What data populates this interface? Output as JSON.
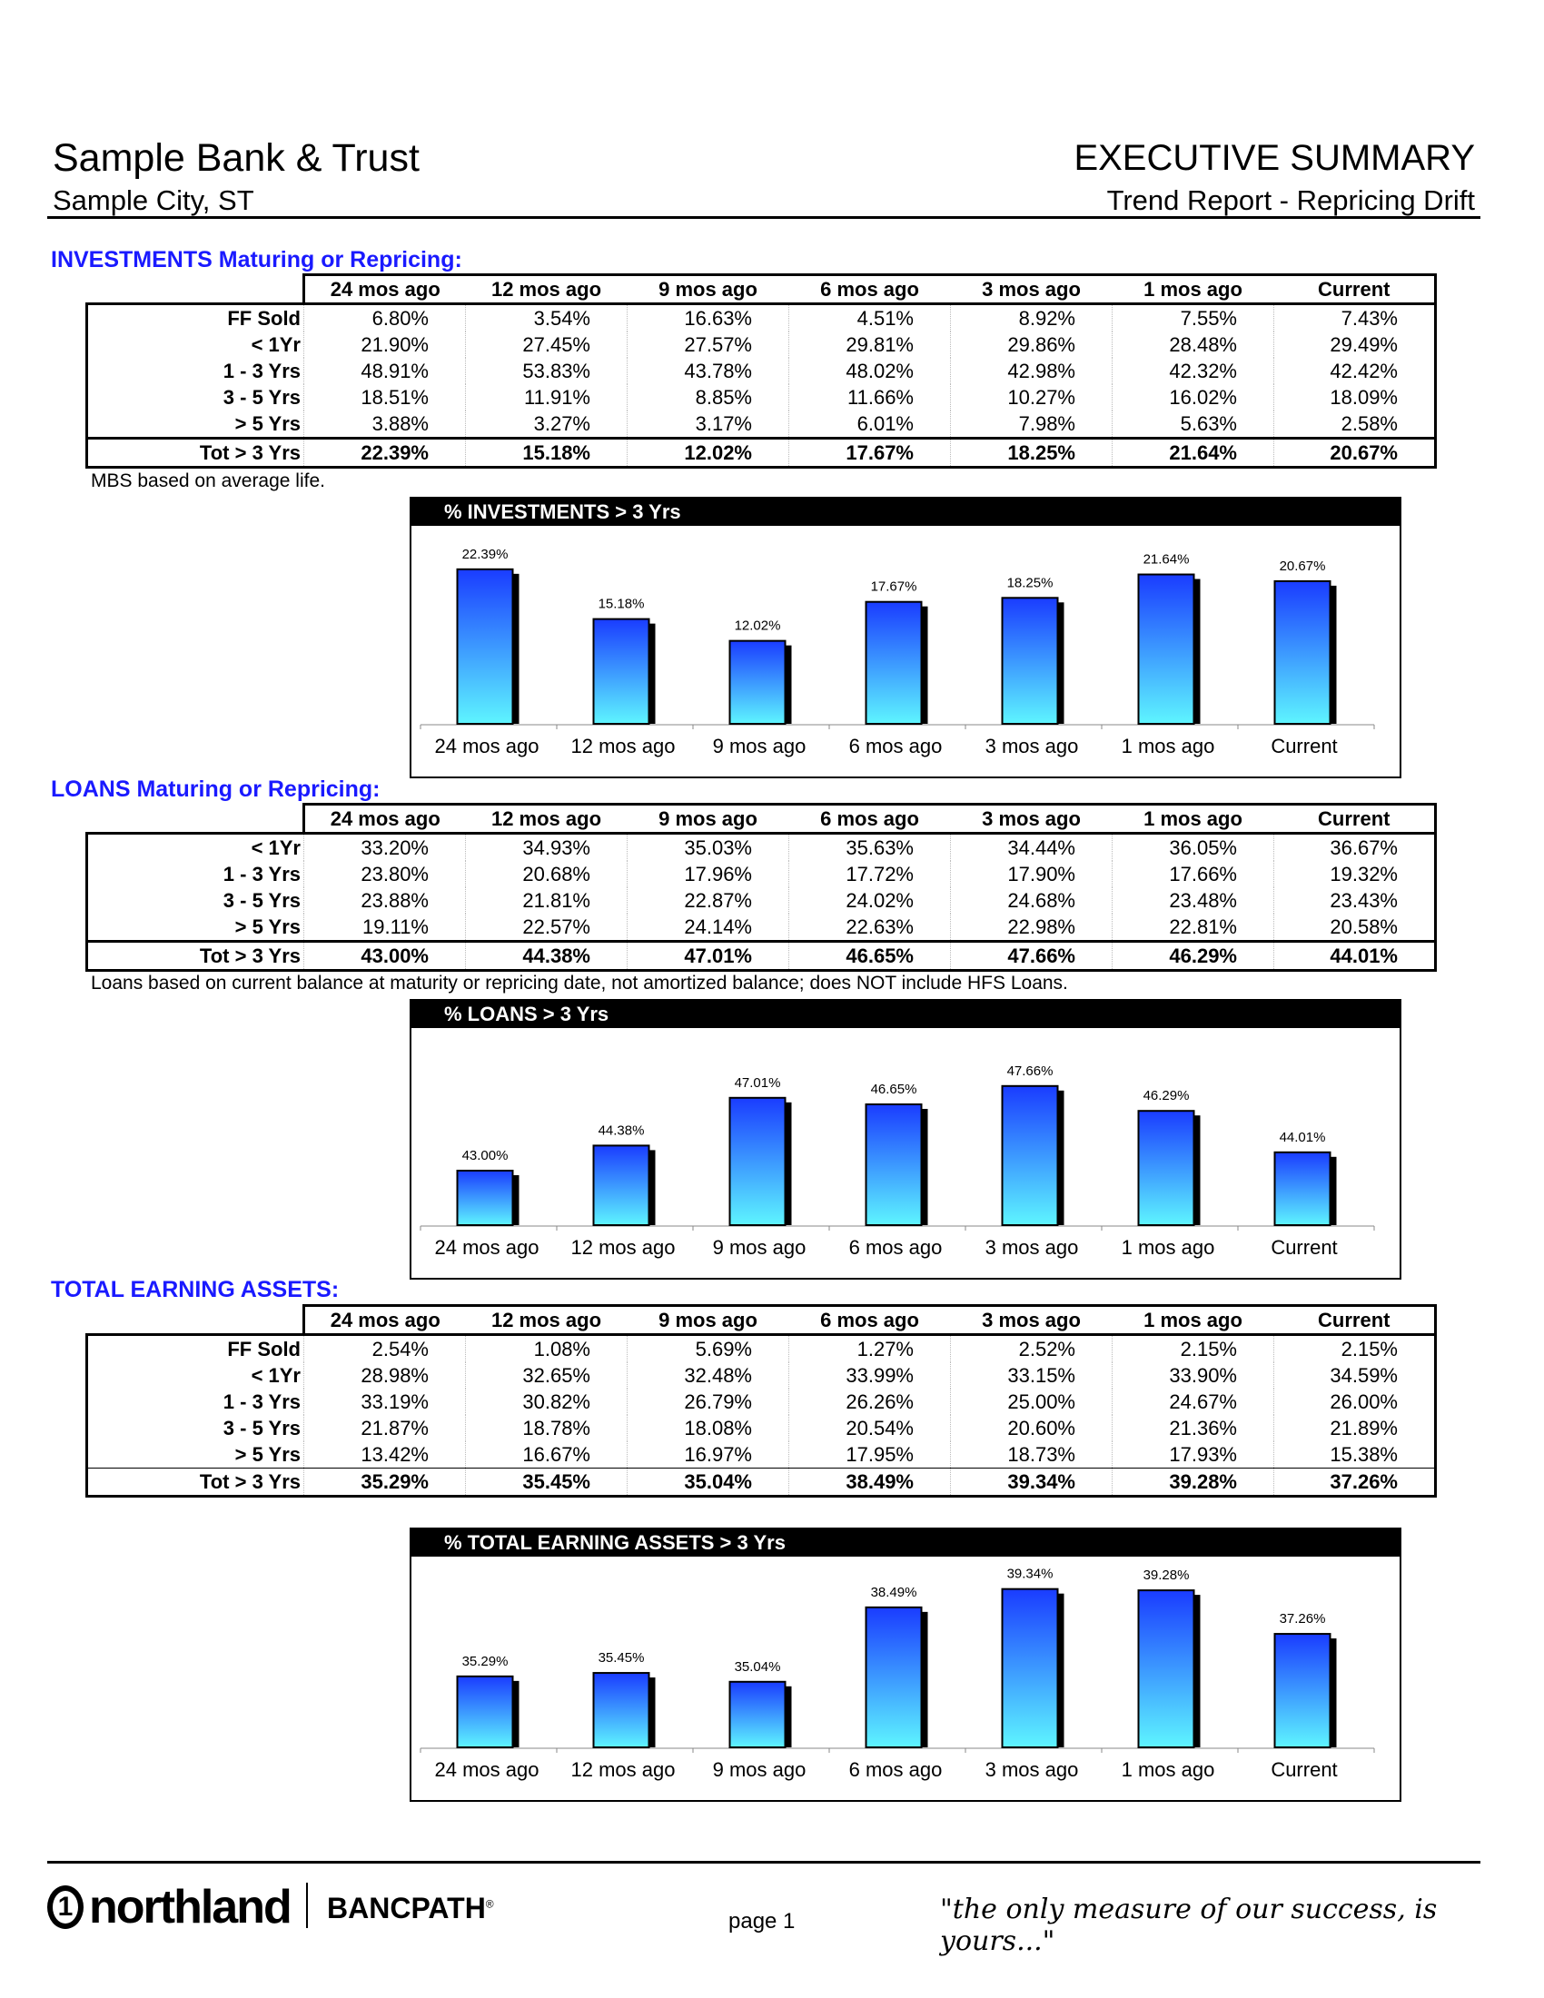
{
  "header": {
    "bank_name": "Sample Bank & Trust",
    "city": "Sample City, ST",
    "report_title": "EXECUTIVE SUMMARY",
    "report_subtitle": "Trend Report - Repricing Drift"
  },
  "columns": [
    "24 mos ago",
    "12 mos ago",
    "9 mos ago",
    "6 mos ago",
    "3 mos ago",
    "1 mos ago",
    "Current"
  ],
  "sections": [
    {
      "heading": "INVESTMENTS Maturing or Repricing:",
      "rows": [
        {
          "label": "FF Sold",
          "values": [
            "6.80%",
            "3.54%",
            "16.63%",
            "4.51%",
            "8.92%",
            "7.55%",
            "7.43%"
          ]
        },
        {
          "label": "<  1Yr",
          "values": [
            "21.90%",
            "27.45%",
            "27.57%",
            "29.81%",
            "29.86%",
            "28.48%",
            "29.49%"
          ]
        },
        {
          "label": "1 - 3 Yrs",
          "values": [
            "48.91%",
            "53.83%",
            "43.78%",
            "48.02%",
            "42.98%",
            "42.32%",
            "42.42%"
          ]
        },
        {
          "label": "3 - 5 Yrs",
          "values": [
            "18.51%",
            "11.91%",
            "8.85%",
            "11.66%",
            "10.27%",
            "16.02%",
            "18.09%"
          ]
        },
        {
          "label": ">  5 Yrs",
          "values": [
            "3.88%",
            "3.27%",
            "3.17%",
            "6.01%",
            "7.98%",
            "5.63%",
            "2.58%"
          ]
        }
      ],
      "total": {
        "label": "Tot  > 3 Yrs",
        "values": [
          "22.39%",
          "15.18%",
          "12.02%",
          "17.67%",
          "18.25%",
          "21.64%",
          "20.67%"
        ]
      },
      "note": "MBS based on average life."
    },
    {
      "heading": "LOANS Maturing or Repricing:",
      "rows": [
        {
          "label": "<  1Yr",
          "values": [
            "33.20%",
            "34.93%",
            "35.03%",
            "35.63%",
            "34.44%",
            "36.05%",
            "36.67%"
          ]
        },
        {
          "label": "1 - 3 Yrs",
          "values": [
            "23.80%",
            "20.68%",
            "17.96%",
            "17.72%",
            "17.90%",
            "17.66%",
            "19.32%"
          ]
        },
        {
          "label": "3 - 5 Yrs",
          "values": [
            "23.88%",
            "21.81%",
            "22.87%",
            "24.02%",
            "24.68%",
            "23.48%",
            "23.43%"
          ]
        },
        {
          "label": ">  5 Yrs",
          "values": [
            "19.11%",
            "22.57%",
            "24.14%",
            "22.63%",
            "22.98%",
            "22.81%",
            "20.58%"
          ]
        }
      ],
      "total": {
        "label": "Tot  > 3 Yrs",
        "values": [
          "43.00%",
          "44.38%",
          "47.01%",
          "46.65%",
          "47.66%",
          "46.29%",
          "44.01%"
        ]
      },
      "note": "Loans based on current balance at maturity or repricing date, not amortized balance; does NOT include HFS Loans."
    },
    {
      "heading": "TOTAL EARNING ASSETS:",
      "rows": [
        {
          "label": "FF Sold",
          "values": [
            "2.54%",
            "1.08%",
            "5.69%",
            "1.27%",
            "2.52%",
            "2.15%",
            "2.15%"
          ]
        },
        {
          "label": "<  1Yr",
          "values": [
            "28.98%",
            "32.65%",
            "32.48%",
            "33.99%",
            "33.15%",
            "33.90%",
            "34.59%"
          ]
        },
        {
          "label": "1 - 3 Yrs",
          "values": [
            "33.19%",
            "30.82%",
            "26.79%",
            "26.26%",
            "25.00%",
            "24.67%",
            "26.00%"
          ]
        },
        {
          "label": "3 - 5 Yrs",
          "values": [
            "21.87%",
            "18.78%",
            "18.08%",
            "20.54%",
            "20.60%",
            "21.36%",
            "21.89%"
          ]
        },
        {
          "label": ">  5 Yrs",
          "values": [
            "13.42%",
            "16.67%",
            "16.97%",
            "17.95%",
            "18.73%",
            "17.93%",
            "15.38%"
          ]
        }
      ],
      "total": {
        "label": "Tot  > 3 Yrs",
        "values": [
          "35.29%",
          "35.45%",
          "35.04%",
          "38.49%",
          "39.34%",
          "39.28%",
          "37.26%"
        ]
      }
    }
  ],
  "chart_data": [
    {
      "type": "bar",
      "title": "% INVESTMENTS > 3 Yrs",
      "categories": [
        "24 mos ago",
        "12 mos ago",
        "9 mos ago",
        "6 mos ago",
        "3 mos ago",
        "1 mos ago",
        "Current"
      ],
      "values": [
        22.39,
        15.18,
        12.02,
        17.67,
        18.25,
        21.64,
        20.67
      ],
      "data_labels": [
        "22.39%",
        "15.18%",
        "12.02%",
        "17.67%",
        "18.25%",
        "21.64%",
        "20.67%"
      ],
      "ylim": [
        0,
        25
      ],
      "grid": false
    },
    {
      "type": "bar",
      "title": "% LOANS > 3 Yrs",
      "categories": [
        "24 mos ago",
        "12 mos ago",
        "9 mos ago",
        "6 mos ago",
        "3 mos ago",
        "1 mos ago",
        "Current"
      ],
      "values": [
        43.0,
        44.38,
        47.01,
        46.65,
        47.66,
        46.29,
        44.01
      ],
      "data_labels": [
        "43.00%",
        "44.38%",
        "47.01%",
        "46.65%",
        "47.66%",
        "46.29%",
        "44.01%"
      ],
      "ylim": [
        40,
        49.5
      ],
      "grid": false
    },
    {
      "type": "bar",
      "title": "% TOTAL EARNING ASSETS > 3 Yrs",
      "categories": [
        "24 mos ago",
        "12 mos ago",
        "9 mos ago",
        "6 mos ago",
        "3 mos ago",
        "1 mos ago",
        "Current"
      ],
      "values": [
        35.29,
        35.45,
        35.04,
        38.49,
        39.34,
        39.28,
        37.26
      ],
      "data_labels": [
        "35.29%",
        "35.45%",
        "35.04%",
        "38.49%",
        "39.34%",
        "39.28%",
        "37.26%"
      ],
      "ylim": [
        32,
        40
      ],
      "grid": false
    }
  ],
  "colors": {
    "heading": "#1a1aff",
    "bar_top": "#1a3cff",
    "bar_bottom": "#5ef5ff"
  },
  "footer": {
    "logo_text": "northland",
    "logo_mark": "1",
    "brand": "BANCPATH",
    "registered": "®",
    "page": "page 1",
    "tagline": "\"the only measure of our success, is yours...\""
  }
}
